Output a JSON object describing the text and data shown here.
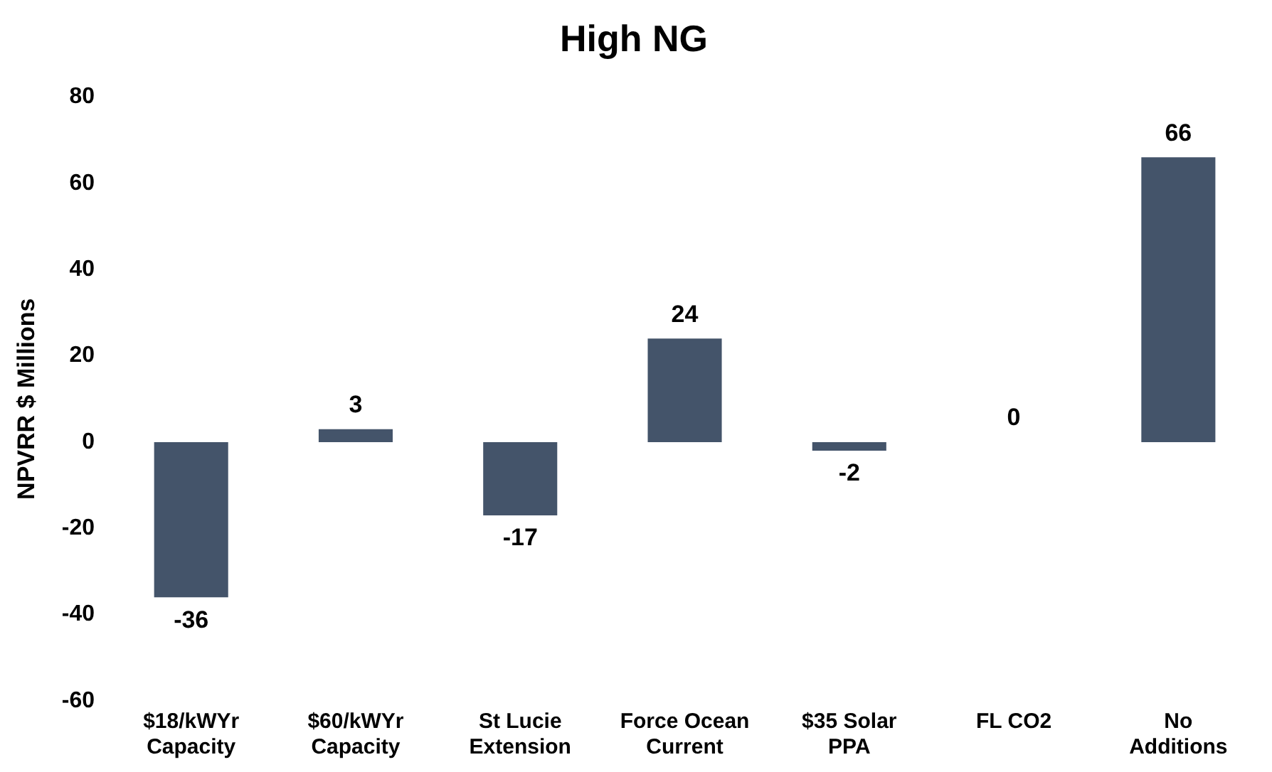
{
  "chart_data": {
    "type": "bar",
    "title": "High NG",
    "ylabel": "NPVRR $ Millions",
    "categories": [
      "$18/kWYr\nCapacity",
      "$60/kWYr\nCapacity",
      "St Lucie\nExtension",
      "Force Ocean\nCurrent",
      "$35 Solar\nPPA",
      "FL CO2",
      "No\nAdditions"
    ],
    "values": [
      -36,
      3,
      -17,
      24,
      -2,
      0,
      66
    ],
    "color": "#44546a",
    "ylim": [
      -60,
      80
    ],
    "yticks": [
      -60,
      -40,
      -20,
      0,
      20,
      40,
      60,
      80
    ],
    "grid": false,
    "data_labels": true
  }
}
